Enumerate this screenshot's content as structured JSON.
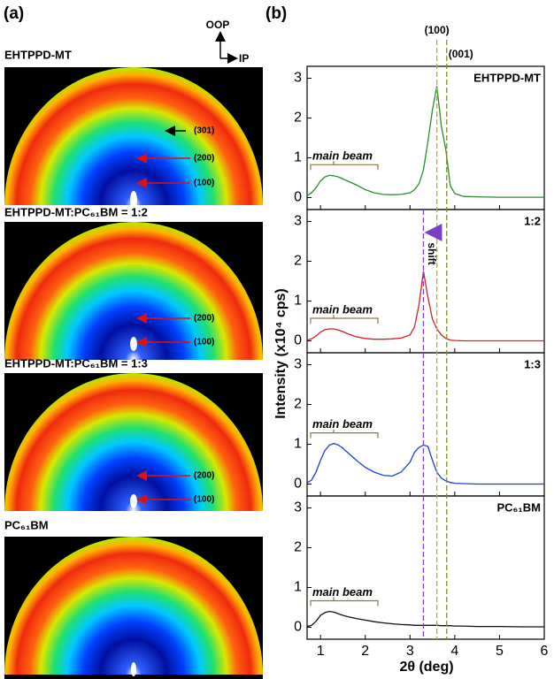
{
  "panel_labels": [
    "(a)",
    "(b)"
  ],
  "images": {
    "oop": "OOP",
    "ip": "IP",
    "items": [
      {
        "title": "EHTPPD-MT",
        "peaks": [
          "(301)",
          "(200)",
          "(100)"
        ]
      },
      {
        "title": "EHTPPD-MT:PC₆₁BM = 1:2",
        "peaks": [
          "(200)",
          "(100)"
        ]
      },
      {
        "title": "EHTPPD-MT:PC₆₁BM = 1:3",
        "peaks": [
          "(200)",
          "(100)"
        ]
      },
      {
        "title": "PC₆₁BM",
        "peaks": []
      }
    ]
  },
  "figure_b": {
    "ylabel": "Intensity (x10⁴ cps)",
    "xlabel": "2θ (deg)",
    "shift_label": "shift",
    "reference_lines": [
      {
        "x": 3.6,
        "label": "(100)",
        "color": "#c8b000"
      },
      {
        "x": 3.82,
        "label": "(001)",
        "color": "#7f8a2a"
      },
      {
        "x": 3.3,
        "color": "#7b3fc4"
      }
    ]
  },
  "chart_data": [
    {
      "type": "line",
      "title": "EHTPPD-MT",
      "annotation": "main beam",
      "color": "#2e8b2e",
      "x": [
        0.7,
        0.8,
        0.9,
        1.0,
        1.1,
        1.2,
        1.3,
        1.4,
        1.5,
        1.6,
        1.8,
        2.0,
        2.2,
        2.4,
        2.6,
        2.8,
        3.0,
        3.1,
        3.2,
        3.3,
        3.4,
        3.5,
        3.6,
        3.7,
        3.8,
        3.9,
        4.0,
        4.2,
        4.5,
        5.0,
        5.5,
        6.0
      ],
      "values": [
        0.05,
        0.12,
        0.25,
        0.42,
        0.52,
        0.56,
        0.55,
        0.52,
        0.47,
        0.42,
        0.32,
        0.2,
        0.12,
        0.08,
        0.07,
        0.08,
        0.12,
        0.2,
        0.35,
        0.7,
        1.4,
        2.2,
        2.8,
        1.8,
        1.2,
        0.3,
        0.1,
        0.03,
        0.02,
        0.01,
        0.01,
        0.01
      ],
      "xlim": [
        0.7,
        6.0
      ],
      "ylim": [
        -0.3,
        3.3
      ],
      "xticks": [
        1,
        2,
        3,
        4,
        5,
        6
      ],
      "yticks": [
        0,
        1,
        2,
        3
      ]
    },
    {
      "type": "line",
      "title": "1:2",
      "annotation": "main beam",
      "color": "#d62020",
      "x": [
        0.7,
        0.8,
        0.9,
        1.0,
        1.1,
        1.2,
        1.3,
        1.4,
        1.5,
        1.6,
        1.8,
        2.0,
        2.2,
        2.4,
        2.6,
        2.8,
        3.0,
        3.1,
        3.2,
        3.3,
        3.4,
        3.5,
        3.6,
        3.7,
        3.8,
        3.9,
        4.0,
        4.2,
        4.5,
        5.0,
        5.5,
        6.0
      ],
      "values": [
        0.02,
        0.05,
        0.12,
        0.22,
        0.28,
        0.3,
        0.3,
        0.27,
        0.23,
        0.18,
        0.1,
        0.06,
        0.04,
        0.04,
        0.05,
        0.07,
        0.15,
        0.35,
        0.9,
        1.75,
        1.1,
        0.55,
        0.3,
        0.15,
        0.06,
        0.02,
        0.01,
        0,
        0,
        0,
        0,
        0
      ],
      "xlim": [
        0.7,
        6.0
      ],
      "ylim": [
        -0.3,
        3.3
      ],
      "xticks": [
        1,
        2,
        3,
        4,
        5,
        6
      ],
      "yticks": [
        0,
        1,
        2,
        3
      ]
    },
    {
      "type": "line",
      "title": "1:3",
      "annotation": "main beam",
      "color": "#1f3fd0",
      "x": [
        0.7,
        0.8,
        0.9,
        1.0,
        1.1,
        1.2,
        1.3,
        1.4,
        1.5,
        1.6,
        1.8,
        2.0,
        2.2,
        2.4,
        2.6,
        2.8,
        3.0,
        3.1,
        3.2,
        3.3,
        3.4,
        3.5,
        3.6,
        3.7,
        3.8,
        3.9,
        4.0,
        4.2,
        4.5,
        5.0,
        5.5,
        6.0
      ],
      "values": [
        0.03,
        0.1,
        0.3,
        0.6,
        0.85,
        0.98,
        1.02,
        0.98,
        0.9,
        0.8,
        0.6,
        0.42,
        0.3,
        0.22,
        0.2,
        0.3,
        0.55,
        0.8,
        0.92,
        0.98,
        0.95,
        0.6,
        0.3,
        0.15,
        0.08,
        0.04,
        0.02,
        0.01,
        0,
        0,
        0,
        0
      ],
      "xlim": [
        0.7,
        6.0
      ],
      "ylim": [
        -0.3,
        3.3
      ],
      "xticks": [
        1,
        2,
        3,
        4,
        5,
        6
      ],
      "yticks": [
        0,
        1,
        2,
        3
      ]
    },
    {
      "type": "line",
      "title": "PC₆₁BM",
      "annotation": "main beam",
      "color": "#111111",
      "x": [
        0.7,
        0.8,
        0.9,
        1.0,
        1.1,
        1.2,
        1.3,
        1.4,
        1.5,
        1.6,
        1.8,
        2.0,
        2.2,
        2.4,
        2.6,
        2.8,
        3.0,
        3.1,
        3.2,
        3.3,
        3.4,
        3.5,
        3.6,
        3.7,
        3.8,
        3.9,
        4.0,
        4.2,
        4.5,
        5.0,
        5.5,
        6.0
      ],
      "values": [
        0.02,
        0.05,
        0.15,
        0.3,
        0.37,
        0.4,
        0.38,
        0.34,
        0.3,
        0.27,
        0.22,
        0.18,
        0.14,
        0.11,
        0.09,
        0.07,
        0.06,
        0.05,
        0.05,
        0.05,
        0.05,
        0.05,
        0.05,
        0.04,
        0.04,
        0.04,
        0.03,
        0.03,
        0.02,
        0.02,
        0.01,
        0.01
      ],
      "xlim": [
        0.7,
        6.0
      ],
      "ylim": [
        -0.3,
        3.3
      ],
      "xticks": [
        1,
        2,
        3,
        4,
        5,
        6
      ],
      "yticks": [
        0,
        1,
        2,
        3
      ]
    }
  ]
}
